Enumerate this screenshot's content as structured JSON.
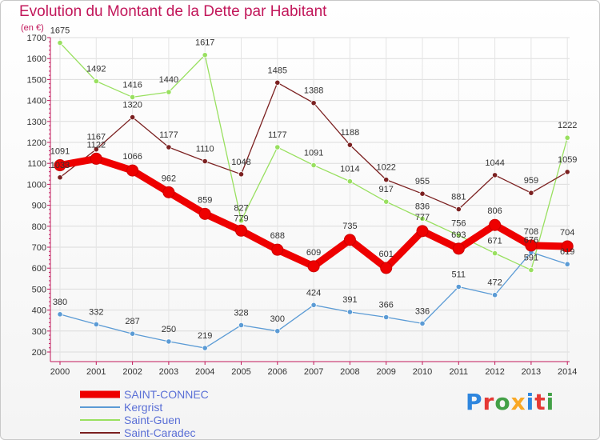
{
  "title": "Evolution du Montant de la Dette par Habitant",
  "unit": "(en €)",
  "brand": "Proxiti",
  "chart_data": {
    "type": "line",
    "title": "Evolution du Montant de la Dette par Habitant",
    "ylabel": "(en €)",
    "xlabel": "",
    "x": [
      "2000",
      "2001",
      "2002",
      "2003",
      "2004",
      "2005",
      "2006",
      "2007",
      "2008",
      "2009",
      "2010",
      "2011",
      "2012",
      "2013",
      "2014"
    ],
    "ylim": [
      200,
      1700
    ],
    "yticks": [
      200,
      300,
      400,
      500,
      600,
      700,
      800,
      900,
      1000,
      1100,
      1200,
      1300,
      1400,
      1500,
      1600,
      1700
    ],
    "grid": true,
    "legend": "bottom-left",
    "series": [
      {
        "name": "SAINT-CONNEC",
        "color": "#ee0000",
        "values": [
          1091,
          1122,
          1066,
          962,
          859,
          779,
          688,
          609,
          735,
          601,
          777,
          693,
          806,
          708,
          704
        ]
      },
      {
        "name": "Kergrist",
        "color": "#5b9bd5",
        "values": [
          380,
          332,
          287,
          250,
          219,
          328,
          300,
          424,
          391,
          366,
          336,
          511,
          472,
          676,
          619
        ]
      },
      {
        "name": "Saint-Guen",
        "color": "#99e060",
        "values": [
          1675,
          1492,
          1416,
          1440,
          1617,
          827,
          1177,
          1091,
          1014,
          917,
          836,
          756,
          671,
          591,
          1222
        ]
      },
      {
        "name": "Saint-Caradec",
        "color": "#7b2020",
        "values": [
          1033,
          1167,
          1320,
          1177,
          1110,
          1048,
          1485,
          1388,
          1188,
          1022,
          955,
          881,
          1044,
          959,
          1059
        ]
      }
    ]
  }
}
